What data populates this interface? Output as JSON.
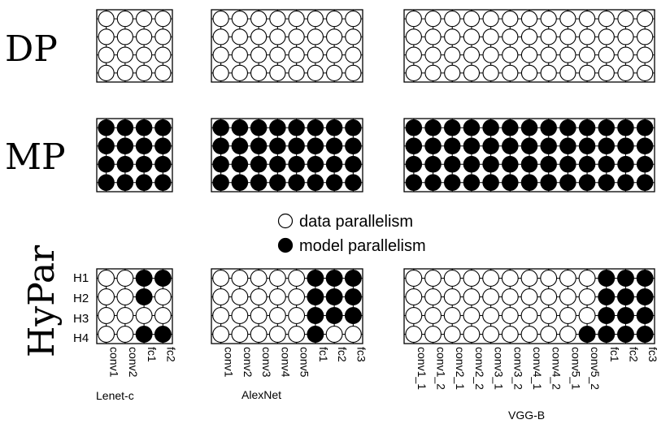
{
  "rows": {
    "dp": "DP",
    "mp": "MP",
    "hypar": "HyPar"
  },
  "legend": {
    "data": "data parallelism",
    "model": "model parallelism"
  },
  "hierarchy_labels": [
    "H1",
    "H2",
    "H3",
    "H4"
  ],
  "networks": [
    {
      "name": "Lenet-c",
      "layers": [
        "conv1",
        "conv2",
        "fc1",
        "fc2"
      ],
      "hypar": [
        [
          0,
          0,
          1,
          1
        ],
        [
          0,
          0,
          1,
          0
        ],
        [
          0,
          0,
          0,
          0
        ],
        [
          0,
          0,
          1,
          1
        ]
      ]
    },
    {
      "name": "AlexNet",
      "layers": [
        "conv1",
        "conv2",
        "conv3",
        "conv4",
        "conv5",
        "fc1",
        "fc2",
        "fc3"
      ],
      "hypar": [
        [
          0,
          0,
          0,
          0,
          0,
          1,
          1,
          1
        ],
        [
          0,
          0,
          0,
          0,
          0,
          1,
          1,
          1
        ],
        [
          0,
          0,
          0,
          0,
          0,
          1,
          1,
          1
        ],
        [
          0,
          0,
          0,
          0,
          0,
          1,
          0,
          0
        ]
      ]
    },
    {
      "name": "VGG-B",
      "layers": [
        "conv1_1",
        "conv1_2",
        "conv2_1",
        "conv2_2",
        "conv3_1",
        "conv3_2",
        "conv4_1",
        "conv4_2",
        "conv5_1",
        "conv5_2",
        "fc1",
        "fc2",
        "fc3"
      ],
      "hypar": [
        [
          0,
          0,
          0,
          0,
          0,
          0,
          0,
          0,
          0,
          0,
          1,
          1,
          1
        ],
        [
          0,
          0,
          0,
          0,
          0,
          0,
          0,
          0,
          0,
          0,
          1,
          1,
          1
        ],
        [
          0,
          0,
          0,
          0,
          0,
          0,
          0,
          0,
          0,
          0,
          1,
          1,
          1
        ],
        [
          0,
          0,
          0,
          0,
          0,
          0,
          0,
          0,
          0,
          1,
          1,
          1,
          1
        ]
      ]
    }
  ],
  "colors": {
    "model": "#000000",
    "data": "#ffffff",
    "line": "#000000"
  }
}
